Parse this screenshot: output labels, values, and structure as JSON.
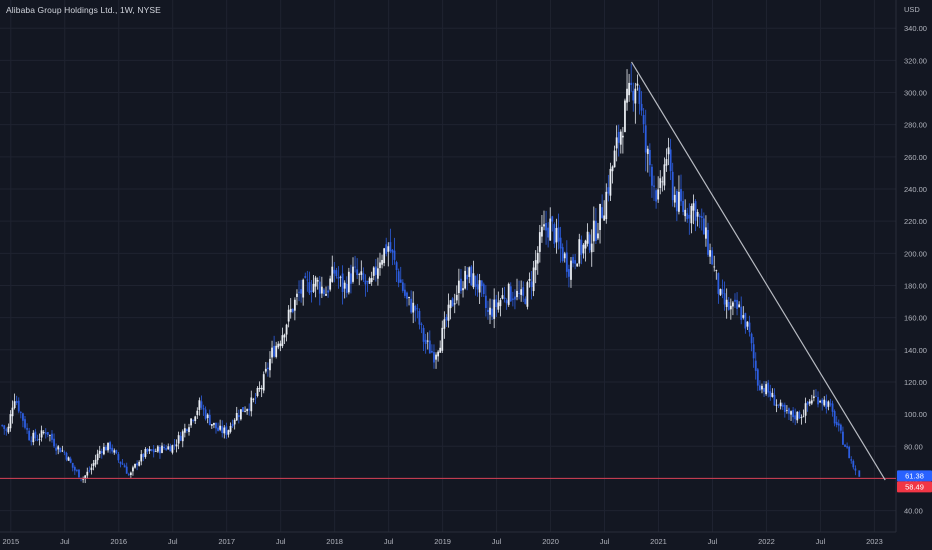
{
  "header": {
    "title": "Alibaba Group Holdings Ltd., 1W, NYSE",
    "currency": "USD"
  },
  "colors": {
    "background": "#131722",
    "grid": "#1f2330",
    "up": "#e8ecf2",
    "down": "#2d5ee0",
    "trendline": "#b8bbc2",
    "hline": "#d84055",
    "label_blue": "#2962ff",
    "label_red": "#f23645",
    "axis_text": "#b2b5be"
  },
  "chart_data": {
    "type": "candlestick",
    "title": "Alibaba Group Holdings Ltd., 1W, NYSE",
    "ylabel": "USD",
    "ylim": [
      36,
      342
    ],
    "y_ticks": [
      40,
      60,
      80,
      100,
      120,
      140,
      160,
      180,
      200,
      220,
      240,
      260,
      280,
      300,
      320,
      340
    ],
    "y_tick_labels": [
      "40.00",
      "60.00",
      "80.00",
      "100.00",
      "120.00",
      "140.00",
      "160.00",
      "180.00",
      "200.00",
      "220.00",
      "240.00",
      "260.00",
      "280.00",
      "300.00",
      "320.00",
      "340.00"
    ],
    "x_range": [
      2014.9,
      2023.2
    ],
    "x_ticks": [
      {
        "t": 2015.0,
        "label": "2015"
      },
      {
        "t": 2015.5,
        "label": "Jul"
      },
      {
        "t": 2016.0,
        "label": "2016"
      },
      {
        "t": 2016.5,
        "label": "Jul"
      },
      {
        "t": 2017.0,
        "label": "2017"
      },
      {
        "t": 2017.5,
        "label": "Jul"
      },
      {
        "t": 2018.0,
        "label": "2018"
      },
      {
        "t": 2018.5,
        "label": "Jul"
      },
      {
        "t": 2019.0,
        "label": "2019"
      },
      {
        "t": 2019.5,
        "label": "Jul"
      },
      {
        "t": 2020.0,
        "label": "2020"
      },
      {
        "t": 2020.5,
        "label": "Jul"
      },
      {
        "t": 2021.0,
        "label": "2021"
      },
      {
        "t": 2021.5,
        "label": "Jul"
      },
      {
        "t": 2022.0,
        "label": "2022"
      },
      {
        "t": 2022.5,
        "label": "Jul"
      },
      {
        "t": 2023.0,
        "label": "2023"
      }
    ],
    "close_path": [
      [
        2014.92,
        93
      ],
      [
        2014.97,
        88
      ],
      [
        2015.03,
        112
      ],
      [
        2015.08,
        103
      ],
      [
        2015.17,
        86
      ],
      [
        2015.25,
        85
      ],
      [
        2015.33,
        90
      ],
      [
        2015.42,
        80
      ],
      [
        2015.5,
        76
      ],
      [
        2015.58,
        66
      ],
      [
        2015.67,
        60
      ],
      [
        2015.75,
        67
      ],
      [
        2015.83,
        78
      ],
      [
        2015.92,
        80
      ],
      [
        2016.0,
        71
      ],
      [
        2016.05,
        68
      ],
      [
        2016.1,
        61
      ],
      [
        2016.17,
        70
      ],
      [
        2016.25,
        76
      ],
      [
        2016.33,
        77
      ],
      [
        2016.42,
        79
      ],
      [
        2016.5,
        80
      ],
      [
        2016.58,
        87
      ],
      [
        2016.67,
        97
      ],
      [
        2016.75,
        106
      ],
      [
        2016.83,
        97
      ],
      [
        2016.92,
        90
      ],
      [
        2017.0,
        89
      ],
      [
        2017.08,
        99
      ],
      [
        2017.17,
        104
      ],
      [
        2017.25,
        108
      ],
      [
        2017.33,
        118
      ],
      [
        2017.42,
        138
      ],
      [
        2017.5,
        148
      ],
      [
        2017.58,
        162
      ],
      [
        2017.67,
        175
      ],
      [
        2017.75,
        180
      ],
      [
        2017.83,
        182
      ],
      [
        2017.92,
        176
      ],
      [
        2018.0,
        189
      ],
      [
        2018.08,
        178
      ],
      [
        2018.17,
        188
      ],
      [
        2018.25,
        183
      ],
      [
        2018.33,
        178
      ],
      [
        2018.42,
        198
      ],
      [
        2018.5,
        205
      ],
      [
        2018.58,
        188
      ],
      [
        2018.67,
        170
      ],
      [
        2018.75,
        165
      ],
      [
        2018.83,
        145
      ],
      [
        2018.92,
        137
      ],
      [
        2019.0,
        150
      ],
      [
        2019.08,
        168
      ],
      [
        2019.17,
        182
      ],
      [
        2019.25,
        186
      ],
      [
        2019.33,
        180
      ],
      [
        2019.42,
        162
      ],
      [
        2019.5,
        168
      ],
      [
        2019.58,
        175
      ],
      [
        2019.67,
        175
      ],
      [
        2019.75,
        171
      ],
      [
        2019.83,
        185
      ],
      [
        2019.92,
        212
      ],
      [
        2020.0,
        218
      ],
      [
        2020.08,
        204
      ],
      [
        2020.17,
        192
      ],
      [
        2020.25,
        201
      ],
      [
        2020.33,
        205
      ],
      [
        2020.42,
        215
      ],
      [
        2020.5,
        232
      ],
      [
        2020.58,
        256
      ],
      [
        2020.67,
        283
      ],
      [
        2020.75,
        302
      ],
      [
        2020.8,
        310
      ],
      [
        2020.83,
        293
      ],
      [
        2020.88,
        264
      ],
      [
        2020.92,
        255
      ],
      [
        2021.0,
        232
      ],
      [
        2021.08,
        264
      ],
      [
        2021.12,
        242
      ],
      [
        2021.17,
        232
      ],
      [
        2021.25,
        226
      ],
      [
        2021.33,
        230
      ],
      [
        2021.42,
        213
      ],
      [
        2021.5,
        195
      ],
      [
        2021.58,
        170
      ],
      [
        2021.67,
        165
      ],
      [
        2021.75,
        165
      ],
      [
        2021.83,
        153
      ],
      [
        2021.92,
        120
      ],
      [
        2022.0,
        115
      ],
      [
        2022.08,
        108
      ],
      [
        2022.17,
        100
      ],
      [
        2022.25,
        99
      ],
      [
        2022.33,
        100
      ],
      [
        2022.42,
        110
      ],
      [
        2022.5,
        110
      ],
      [
        2022.58,
        105
      ],
      [
        2022.67,
        90
      ],
      [
        2022.75,
        77
      ],
      [
        2022.83,
        63
      ]
    ],
    "trendline": {
      "from": [
        2020.75,
        319
      ],
      "to": [
        2023.1,
        59
      ]
    },
    "horizontal_line": {
      "price": 60.0
    },
    "price_labels": [
      {
        "value": "61.38",
        "kind": "last"
      },
      {
        "value": "58.49",
        "kind": "line"
      }
    ],
    "grid": true
  }
}
